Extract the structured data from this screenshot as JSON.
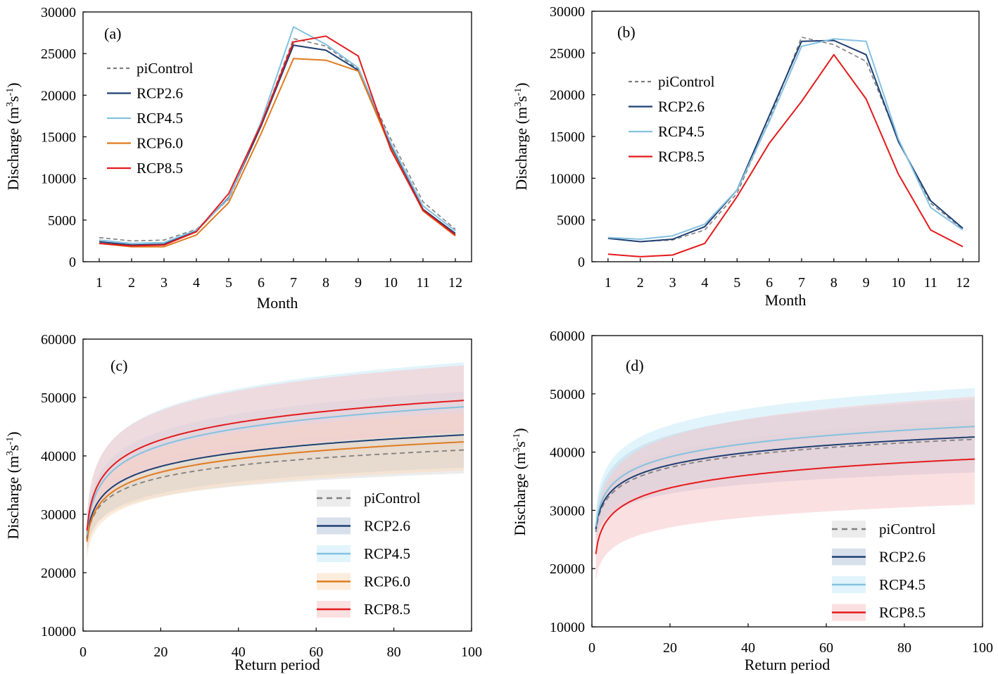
{
  "colors": {
    "piControl": "#7f7f7f",
    "RCP2.6": "#1f3f73",
    "RCP4.5": "#84c1e0",
    "RCP6.0": "#e07b1f",
    "RCP8.5": "#e41a1c",
    "band_RCP2.6": "#b8c7dc",
    "band_RCP4.5": "#c9ebf8",
    "band_RCP6.0": "#fbdcc0",
    "band_RCP8.5": "#f7c7cb",
    "band_piControl": "#dcdcdc"
  },
  "chart_data": [
    {
      "panel": "(a)",
      "type": "line",
      "xlabel": "Month",
      "ylabel_main": "Discharge (m",
      "ylabel_sup1": "3",
      "ylabel_mid": "s",
      "ylabel_sup2": "-1",
      "ylabel_end": ")",
      "xlim": [
        0.5,
        12.5
      ],
      "ylim": [
        0,
        30000
      ],
      "x_ticks": [
        1,
        2,
        3,
        4,
        5,
        6,
        7,
        8,
        9,
        10,
        11,
        12
      ],
      "y_ticks": [
        0,
        5000,
        10000,
        15000,
        20000,
        25000,
        30000
      ],
      "y_tick_labels": [
        "0",
        "5000",
        "10000",
        "15000",
        "20000",
        "25000",
        "30000"
      ],
      "legend": [
        "piControl",
        "RCP2.6",
        "RCP4.5",
        "RCP6.0",
        "RCP8.5"
      ],
      "series": [
        {
          "name": "piControl",
          "dashed": true,
          "values": [
            2900,
            2500,
            2600,
            3900,
            7500,
            16500,
            26800,
            25900,
            23100,
            14800,
            7200,
            3900
          ]
        },
        {
          "name": "RCP2.6",
          "values": [
            2400,
            2000,
            2100,
            3700,
            7700,
            16300,
            26000,
            25400,
            23000,
            13900,
            6300,
            3400
          ]
        },
        {
          "name": "RCP4.5",
          "values": [
            2600,
            2200,
            2300,
            3800,
            7600,
            16800,
            28200,
            26100,
            23300,
            14300,
            6700,
            3700
          ]
        },
        {
          "name": "RCP6.0",
          "values": [
            2200,
            1800,
            1800,
            3200,
            7100,
            15400,
            24400,
            24200,
            22900,
            13700,
            6100,
            3100
          ]
        },
        {
          "name": "RCP8.5",
          "values": [
            2200,
            1900,
            2000,
            3600,
            8200,
            16500,
            26400,
            27100,
            24700,
            13500,
            6200,
            3200
          ]
        }
      ]
    },
    {
      "panel": "(b)",
      "type": "line",
      "xlabel": "Month",
      "ylabel_main": "Discharge (m",
      "ylabel_sup1": "3",
      "ylabel_mid": "s",
      "ylabel_sup2": "-1",
      "ylabel_end": ")",
      "xlim": [
        0.5,
        12.5
      ],
      "ylim": [
        0,
        30000
      ],
      "x_ticks": [
        1,
        2,
        3,
        4,
        5,
        6,
        7,
        8,
        9,
        10,
        11,
        12
      ],
      "y_ticks": [
        0,
        5000,
        10000,
        15000,
        20000,
        25000,
        30000
      ],
      "y_tick_labels": [
        "0",
        "5000",
        "10000",
        "15000",
        "20000",
        "25000",
        "30000"
      ],
      "legend": [
        "piControl",
        "RCP2.6",
        "RCP4.5",
        "RCP8.5"
      ],
      "series": [
        {
          "name": "piControl",
          "dashed": true,
          "values": [
            2800,
            2400,
            2600,
            3800,
            8200,
            17000,
            26900,
            26000,
            24000,
            14600,
            7000,
            3900
          ]
        },
        {
          "name": "RCP2.6",
          "values": [
            2800,
            2400,
            2700,
            4200,
            8600,
            17500,
            26400,
            26500,
            24800,
            14400,
            7300,
            4000
          ]
        },
        {
          "name": "RCP4.5",
          "values": [
            2900,
            2700,
            3100,
            4500,
            8600,
            16800,
            25800,
            26700,
            26400,
            14700,
            6500,
            3800
          ]
        },
        {
          "name": "RCP8.5",
          "values": [
            900,
            600,
            800,
            2200,
            7800,
            14200,
            19200,
            24800,
            19500,
            10500,
            3800,
            1800
          ]
        }
      ]
    },
    {
      "panel": "(c)",
      "type": "line",
      "xlabel": "Return period",
      "ylabel_main": "Discharge (m",
      "ylabel_sup1": "3",
      "ylabel_mid": "s",
      "ylabel_sup2": "-1",
      "ylabel_end": ")",
      "xlim": [
        0,
        100
      ],
      "ylim": [
        10000,
        60000
      ],
      "x_ticks": [
        0,
        20,
        40,
        60,
        80,
        100
      ],
      "y_ticks": [
        10000,
        20000,
        30000,
        40000,
        50000,
        60000
      ],
      "y_tick_labels": [
        "10000",
        "20000",
        "30000",
        "40000",
        "50000",
        "60000"
      ],
      "legend": [
        "piControl",
        "RCP2.6",
        "RCP4.5",
        "RCP6.0",
        "RCP8.5"
      ],
      "series": [
        {
          "name": "piControl",
          "dashed": true,
          "start": 25500,
          "end": 41000,
          "band_low_start": 24000,
          "band_low_end": 37000,
          "band_high_start": 27000,
          "band_high_end": 45000
        },
        {
          "name": "RCP2.6",
          "start": 25800,
          "end": 43600,
          "band_low_start": 23500,
          "band_low_end": 38000,
          "band_high_start": 28500,
          "band_high_end": 51000
        },
        {
          "name": "RCP4.5",
          "start": 26500,
          "end": 48400,
          "band_low_start": 24000,
          "band_low_end": 43500,
          "band_high_start": 29500,
          "band_high_end": 56000
        },
        {
          "name": "RCP6.0",
          "start": 25300,
          "end": 42400,
          "band_low_start": 22500,
          "band_low_end": 37500,
          "band_high_start": 27500,
          "band_high_end": 47500
        },
        {
          "name": "RCP8.5",
          "start": 27200,
          "end": 49500,
          "band_low_start": 24500,
          "band_low_end": 44000,
          "band_high_start": 30000,
          "band_high_end": 55500
        }
      ]
    },
    {
      "panel": "(d)",
      "type": "line",
      "xlabel": "Return period",
      "ylabel_main": "Discharge (m",
      "ylabel_sup1": "3",
      "ylabel_mid": "s",
      "ylabel_sup2": "-1",
      "ylabel_end": ")",
      "xlim": [
        0,
        100
      ],
      "ylim": [
        10000,
        60000
      ],
      "x_ticks": [
        0,
        20,
        40,
        60,
        80,
        100
      ],
      "y_ticks": [
        10000,
        20000,
        30000,
        40000,
        50000,
        60000
      ],
      "y_tick_labels": [
        "10000",
        "20000",
        "30000",
        "40000",
        "50000",
        "60000"
      ],
      "legend": [
        "piControl",
        "RCP2.6",
        "RCP4.5",
        "RCP8.5"
      ],
      "series": [
        {
          "name": "piControl",
          "dashed": true,
          "start": 26300,
          "end": 42200,
          "band_low_start": 25000,
          "band_low_end": 38500,
          "band_high_start": 27500,
          "band_high_end": 45500
        },
        {
          "name": "RCP2.6",
          "start": 26800,
          "end": 42600,
          "band_low_start": 24500,
          "band_low_end": 36500,
          "band_high_start": 29000,
          "band_high_end": 49000
        },
        {
          "name": "RCP4.5",
          "start": 27200,
          "end": 44400,
          "band_low_start": 25000,
          "band_low_end": 38500,
          "band_high_start": 30000,
          "band_high_end": 51000
        },
        {
          "name": "RCP8.5",
          "start": 22500,
          "end": 38800,
          "band_low_start": 18000,
          "band_low_end": 31000,
          "band_high_start": 27000,
          "band_high_end": 49500
        }
      ]
    }
  ]
}
